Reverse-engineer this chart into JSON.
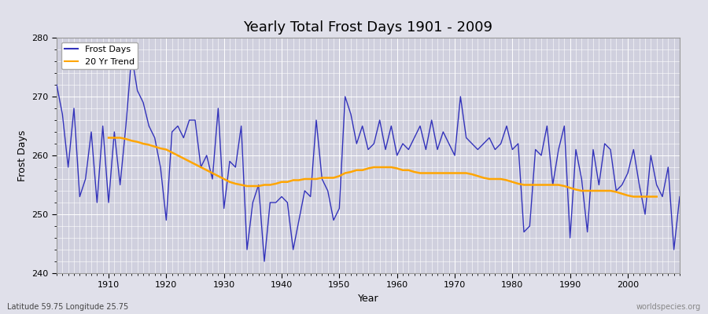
{
  "title": "Yearly Total Frost Days 1901 - 2009",
  "xlabel": "Year",
  "ylabel": "Frost Days",
  "subtitle": "Latitude 59.75 Longitude 25.75",
  "watermark": "worldspecies.org",
  "ylim": [
    240,
    280
  ],
  "yticks": [
    240,
    250,
    260,
    270,
    280
  ],
  "line_color": "#3333bb",
  "trend_color": "#FFA500",
  "fig_bg": "#e0e0ea",
  "plot_bg": "#d0d0de",
  "years": [
    1901,
    1902,
    1903,
    1904,
    1905,
    1906,
    1907,
    1908,
    1909,
    1910,
    1911,
    1912,
    1913,
    1914,
    1915,
    1916,
    1917,
    1918,
    1919,
    1920,
    1921,
    1922,
    1923,
    1924,
    1925,
    1926,
    1927,
    1928,
    1929,
    1930,
    1931,
    1932,
    1933,
    1934,
    1935,
    1936,
    1937,
    1938,
    1939,
    1940,
    1941,
    1942,
    1943,
    1944,
    1945,
    1946,
    1947,
    1948,
    1949,
    1950,
    1951,
    1952,
    1953,
    1954,
    1955,
    1956,
    1957,
    1958,
    1959,
    1960,
    1961,
    1962,
    1963,
    1964,
    1965,
    1966,
    1967,
    1968,
    1969,
    1970,
    1971,
    1972,
    1973,
    1974,
    1975,
    1976,
    1977,
    1978,
    1979,
    1980,
    1981,
    1982,
    1983,
    1984,
    1985,
    1986,
    1987,
    1988,
    1989,
    1990,
    1991,
    1992,
    1993,
    1994,
    1995,
    1996,
    1997,
    1998,
    1999,
    2000,
    2001,
    2002,
    2003,
    2004,
    2005,
    2006,
    2007,
    2008,
    2009
  ],
  "frost_days": [
    272,
    267,
    258,
    268,
    253,
    256,
    264,
    252,
    265,
    252,
    264,
    255,
    265,
    277,
    271,
    269,
    265,
    263,
    258,
    249,
    264,
    265,
    263,
    266,
    266,
    258,
    260,
    256,
    268,
    251,
    259,
    258,
    265,
    244,
    252,
    255,
    242,
    252,
    252,
    253,
    252,
    244,
    249,
    254,
    253,
    266,
    256,
    254,
    249,
    251,
    270,
    267,
    262,
    265,
    261,
    262,
    266,
    261,
    265,
    260,
    262,
    261,
    263,
    265,
    261,
    266,
    261,
    264,
    262,
    260,
    270,
    263,
    262,
    261,
    262,
    263,
    261,
    262,
    265,
    261,
    262,
    247,
    248,
    261,
    260,
    265,
    255,
    261,
    265,
    246,
    261,
    256,
    247,
    261,
    255,
    262,
    261,
    254,
    255,
    257,
    261,
    255,
    250,
    260,
    255,
    253,
    258,
    244,
    253
  ],
  "trend_years": [
    1910,
    1911,
    1912,
    1913,
    1914,
    1915,
    1916,
    1917,
    1918,
    1919,
    1920,
    1921,
    1922,
    1923,
    1924,
    1925,
    1926,
    1927,
    1928,
    1929,
    1930,
    1931,
    1932,
    1933,
    1934,
    1935,
    1936,
    1937,
    1938,
    1939,
    1940,
    1941,
    1942,
    1943,
    1944,
    1945,
    1946,
    1947,
    1948,
    1949,
    1950,
    1951,
    1952,
    1953,
    1954,
    1955,
    1956,
    1957,
    1958,
    1959,
    1960,
    1961,
    1962,
    1963,
    1964,
    1965,
    1966,
    1967,
    1968,
    1969,
    1970,
    1971,
    1972,
    1973,
    1974,
    1975,
    1976,
    1977,
    1978,
    1979,
    1980,
    1981,
    1982,
    1983,
    1984,
    1985,
    1986,
    1987,
    1988,
    1989,
    1990,
    1991,
    1992,
    1993,
    1994,
    1995,
    1996,
    1997,
    1998,
    1999,
    2000,
    2001,
    2002,
    2003,
    2004,
    2005
  ],
  "trend_values": [
    263.0,
    263.0,
    263.0,
    262.8,
    262.5,
    262.3,
    262.0,
    261.8,
    261.5,
    261.2,
    261.0,
    260.5,
    260.0,
    259.5,
    259.0,
    258.5,
    258.0,
    257.5,
    257.0,
    256.5,
    256.0,
    255.5,
    255.2,
    255.0,
    254.8,
    254.8,
    254.8,
    255.0,
    255.0,
    255.2,
    255.5,
    255.5,
    255.8,
    255.8,
    256.0,
    256.0,
    256.0,
    256.2,
    256.2,
    256.2,
    256.5,
    257.0,
    257.2,
    257.5,
    257.5,
    257.8,
    258.0,
    258.0,
    258.0,
    258.0,
    257.8,
    257.5,
    257.5,
    257.2,
    257.0,
    257.0,
    257.0,
    257.0,
    257.0,
    257.0,
    257.0,
    257.0,
    257.0,
    256.8,
    256.5,
    256.2,
    256.0,
    256.0,
    256.0,
    255.8,
    255.5,
    255.2,
    255.0,
    255.0,
    255.0,
    255.0,
    255.0,
    255.0,
    255.0,
    254.8,
    254.5,
    254.2,
    254.0,
    254.0,
    254.0,
    254.0,
    254.0,
    254.0,
    253.8,
    253.5,
    253.2,
    253.0,
    253.0,
    253.0,
    253.0,
    253.0
  ]
}
